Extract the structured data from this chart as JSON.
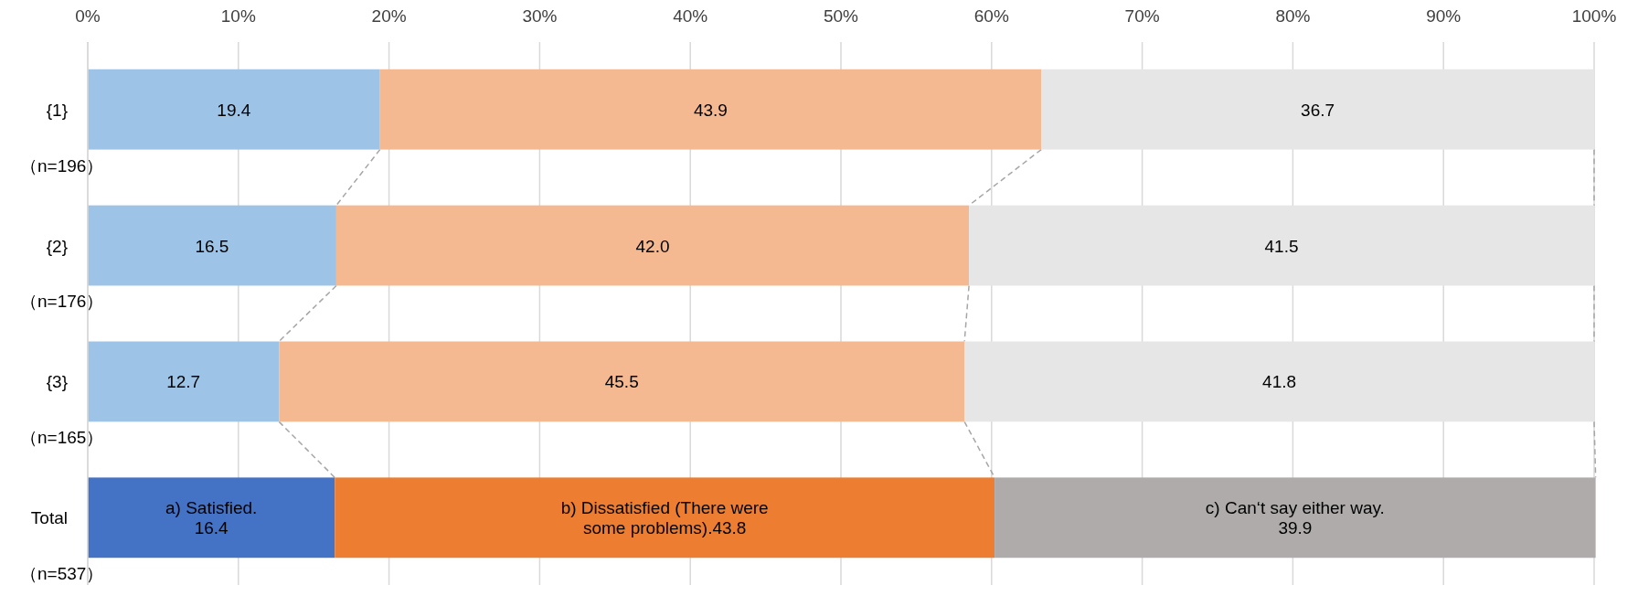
{
  "chart_data": {
    "type": "bar",
    "orientation": "horizontal",
    "stacked": true,
    "categories": [
      "{1}\n（n=196）",
      "{2}\n（n=176）",
      "{3}\n（n=165）",
      "Total\n（n=537）"
    ],
    "series": [
      {
        "colors": [
          "#9dc3e6",
          "#9dc3e6",
          "#9dc3e6",
          "#4472c4"
        ],
        "values": [
          19.4,
          16.5,
          12.7,
          16.4
        ],
        "value_labels": [
          "19.4",
          "16.5",
          "12.7",
          "a) Satisfied.\n16.4"
        ]
      },
      {
        "colors": [
          "#f4b990",
          "#f4b990",
          "#f4b990",
          "#ed7d31"
        ],
        "values": [
          43.9,
          42.0,
          45.5,
          43.8
        ],
        "value_labels": [
          "43.9",
          "42.0",
          "45.5",
          "b) Dissatisfied (There were\nsome problems).43.8"
        ]
      },
      {
        "colors": [
          "#e6e6e6",
          "#e6e6e6",
          "#e6e6e6",
          "#afabab"
        ],
        "values": [
          36.7,
          41.5,
          41.8,
          39.9
        ],
        "value_labels": [
          "36.7",
          "41.5",
          "41.8",
          "c) Can‘t say either way.\n39.9"
        ]
      }
    ],
    "xlim": [
      0,
      100
    ],
    "xticks": [
      {
        "value": 0,
        "label": "0%"
      },
      {
        "value": 10,
        "label": "10%"
      },
      {
        "value": 20,
        "label": "20%"
      },
      {
        "value": 30,
        "label": "30%"
      },
      {
        "value": 40,
        "label": "40%"
      },
      {
        "value": 50,
        "label": "50%"
      },
      {
        "value": 60,
        "label": "60%"
      },
      {
        "value": 70,
        "label": "70%"
      },
      {
        "value": 80,
        "label": "80%"
      },
      {
        "value": 90,
        "label": "90%"
      },
      {
        "value": 100,
        "label": "100%"
      }
    ],
    "grid": "x"
  }
}
